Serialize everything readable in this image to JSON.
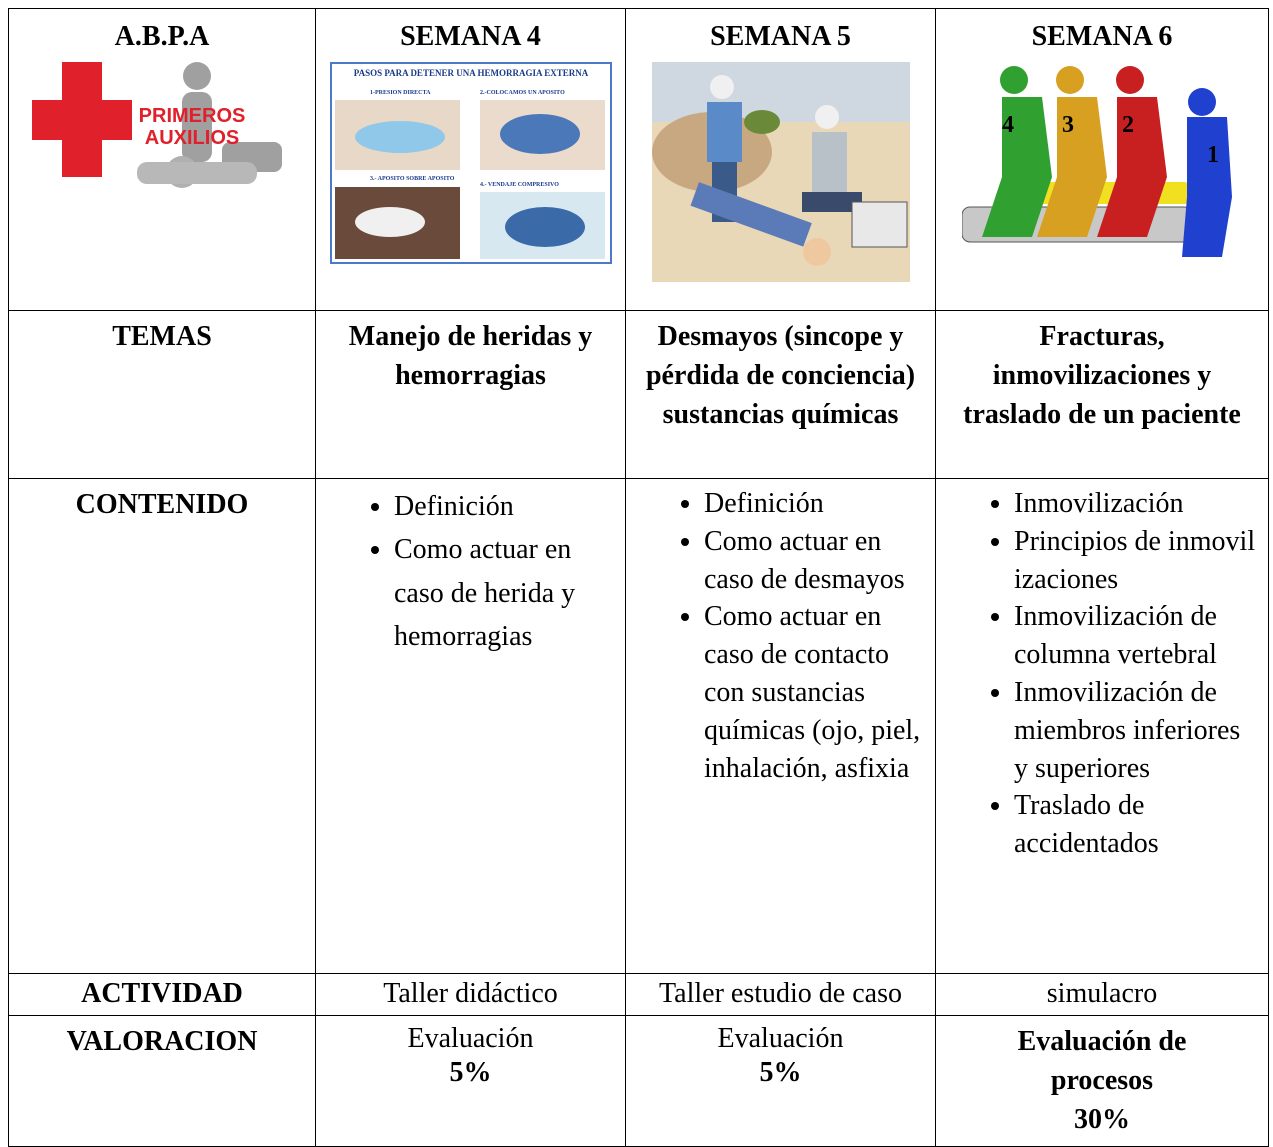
{
  "table": {
    "header": [
      "A.B.P.A",
      "SEMANA 4",
      "SEMANA 5",
      "SEMANA 6"
    ],
    "images": {
      "logo": [
        "PRIMEROS",
        "AUXILIOS"
      ],
      "poster": {
        "title": "PASOS PARA DETENER UNA HEMORRAGIA EXTERNA",
        "steps": [
          "1-PRESION DIRECTA",
          "2.-COLOCAMOS UN APOSITO",
          "3.- APOSITO SOBRE APOSITO",
          "4.- VENDAJE COMPRESIVO"
        ]
      },
      "rescuers": [
        "4",
        "3",
        "2",
        "1"
      ]
    },
    "rows": [
      {
        "label": "TEMAS",
        "cells": [
          "Manejo de heridas y hemorragias",
          "Desmayos (sincope y pérdida de conciencia) sustancias químicas",
          "Fracturas, inmovilizaciones y traslado de un paciente"
        ]
      },
      {
        "label": "CONTENIDO",
        "cells": [
          [
            "Definición",
            "Como actuar en caso de herida y hemorragias"
          ],
          [
            "Definición",
            "Como actuar en caso de desmayos",
            "Como actuar en caso de contacto con sustancias químicas (ojo, piel, inhalación, asfixia"
          ],
          [
            "Inmovilización",
            "Principios de inmovilizaciones",
            "Inmovilización de columna vertebral",
            "Inmovilización de miembros inferiores y superiores",
            "Traslado de accidentados"
          ]
        ]
      },
      {
        "label": "ACTIVIDAD",
        "cells": [
          "Taller didáctico",
          "Taller estudio de caso",
          "simulacro"
        ]
      },
      {
        "label": "VALORACION",
        "cells": [
          [
            "Evaluación",
            "5%"
          ],
          [
            "Evaluación",
            "5%"
          ],
          [
            "Evaluación de procesos",
            "30%"
          ]
        ]
      }
    ]
  }
}
